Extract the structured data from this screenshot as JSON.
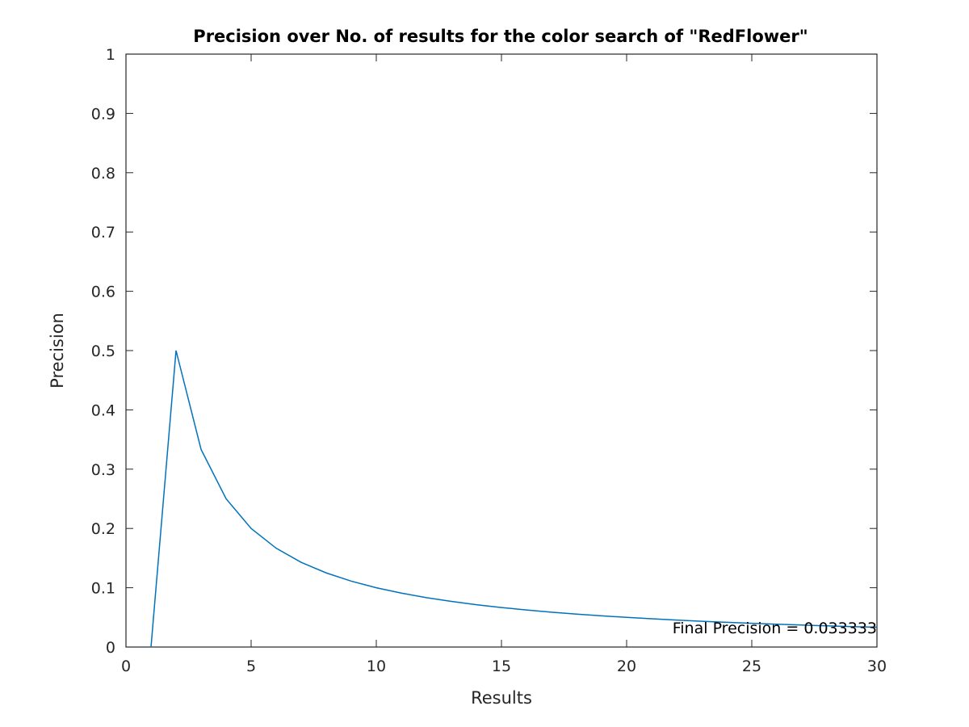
{
  "chart_data": {
    "type": "line",
    "title": "Precision over No. of results for the color search of \"RedFlower\"",
    "xlabel": "Results",
    "ylabel": "Precision",
    "xlim": [
      0,
      30
    ],
    "ylim": [
      0,
      1
    ],
    "x_ticks": [
      "0",
      "5",
      "10",
      "15",
      "20",
      "25",
      "30"
    ],
    "y_ticks": [
      "0",
      "0.1",
      "0.2",
      "0.3",
      "0.4",
      "0.5",
      "0.6",
      "0.7",
      "0.8",
      "0.9",
      "1"
    ],
    "grid": false,
    "series": [
      {
        "color": "#0072bd",
        "x": [
          1,
          2,
          3,
          4,
          5,
          6,
          7,
          8,
          9,
          10,
          11,
          12,
          13,
          14,
          15,
          16,
          17,
          18,
          19,
          20,
          21,
          22,
          23,
          24,
          25,
          26,
          27,
          28,
          29,
          30
        ],
        "y": [
          0,
          0.5,
          0.333333,
          0.25,
          0.2,
          0.166667,
          0.142857,
          0.125,
          0.111111,
          0.1,
          0.090909,
          0.083333,
          0.076923,
          0.071429,
          0.066667,
          0.0625,
          0.058824,
          0.055556,
          0.052632,
          0.05,
          0.047619,
          0.045455,
          0.043478,
          0.041667,
          0.04,
          0.038462,
          0.037037,
          0.035714,
          0.034483,
          0.033333
        ]
      }
    ],
    "annotation": "Final Precision = 0.033333"
  }
}
